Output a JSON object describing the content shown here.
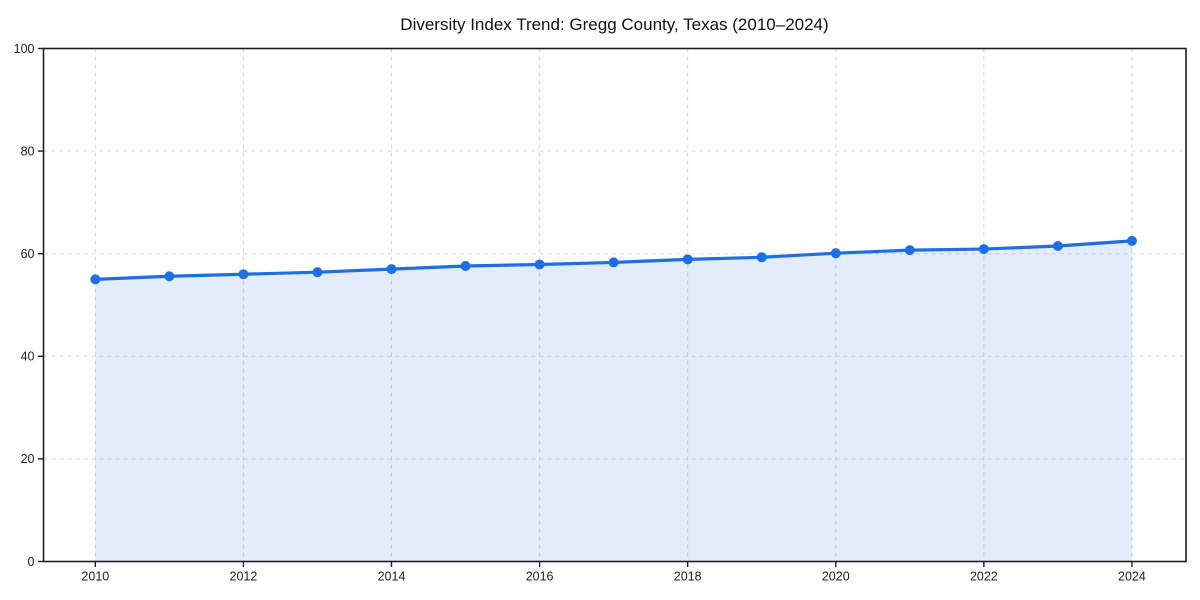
{
  "page": {
    "background": "#ffffff"
  },
  "chart_data": {
    "type": "line",
    "title": "Diversity Index Trend: Gregg County, Texas (2010–2024)",
    "xlabel": "",
    "ylabel": "",
    "x": [
      2010,
      2011,
      2012,
      2013,
      2014,
      2015,
      2016,
      2017,
      2018,
      2019,
      2020,
      2021,
      2022,
      2023,
      2024
    ],
    "series": [
      {
        "name": "Diversity Index",
        "values": [
          55.0,
          55.6,
          56.0,
          56.4,
          57.0,
          57.6,
          57.9,
          58.3,
          58.9,
          59.3,
          60.1,
          60.7,
          60.9,
          61.5,
          62.5
        ]
      }
    ],
    "xticks": [
      2010,
      2012,
      2014,
      2016,
      2018,
      2020,
      2022,
      2024
    ],
    "yticks": [
      0,
      20,
      40,
      60,
      80,
      100
    ],
    "xlim": [
      2009.3,
      2024.73
    ],
    "ylim": [
      0,
      100
    ],
    "grid": "dashed",
    "legend": "none",
    "marker": "circle",
    "area_fill": true,
    "colors": {
      "line": "#1e6fe3",
      "marker": "#1e6fe3",
      "area_fill": "rgba(30, 111, 227, 0.13)",
      "grid": "#d9d9d9",
      "axis": "#1b1f24",
      "tick_label": "#1f1f1f",
      "title": "#111111",
      "background": "#ffffff"
    }
  }
}
